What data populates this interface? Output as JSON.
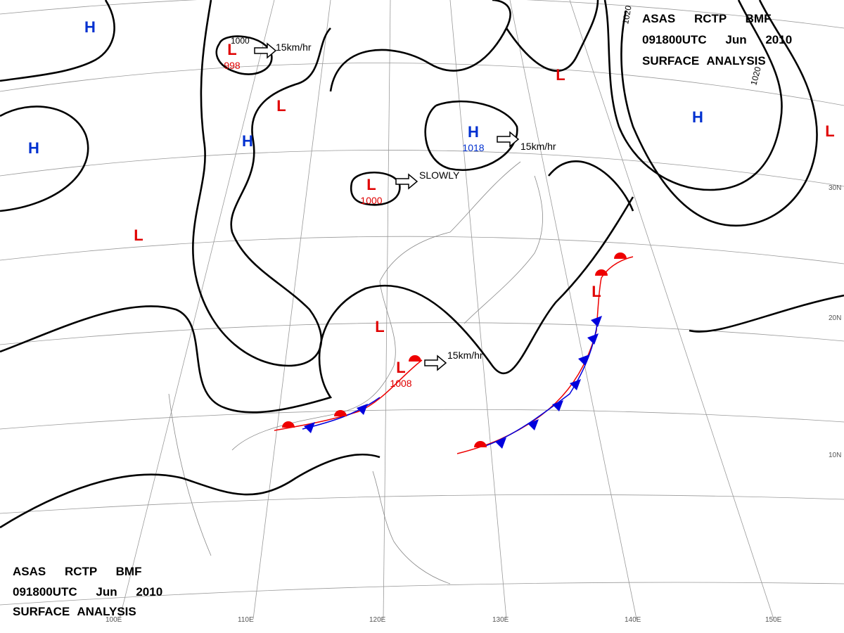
{
  "header_top": {
    "line1": "ASAS RCTP BMF",
    "line2": "091800UTC Jun 2010",
    "line3": "SURFACE ANALYSIS"
  },
  "header_bottom": {
    "line1": "ASAS RCTP BMF",
    "line2": "091800UTC Jun 2010",
    "line3": "SURFACE ANALYSIS"
  },
  "systems": [
    {
      "symbol": "L",
      "pressure": 998
    },
    {
      "symbol": "L"
    },
    {
      "symbol": "H"
    },
    {
      "symbol": "H"
    },
    {
      "symbol": "H"
    },
    {
      "symbol": "L"
    },
    {
      "symbol": "L",
      "pressure": 1000
    },
    {
      "symbol": "H",
      "pressure": 1018
    },
    {
      "symbol": "L"
    },
    {
      "symbol": "H"
    },
    {
      "symbol": "L"
    },
    {
      "symbol": "L",
      "pressure": 1008
    },
    {
      "symbol": "L"
    },
    {
      "symbol": "L"
    }
  ],
  "motions": [
    "15km/hr",
    "SLOWLY",
    "15km/hr",
    "15km/hr"
  ],
  "isobar_labels": [
    "1000",
    "1020",
    "1020"
  ],
  "latitude_labels": [
    "30N",
    "20N",
    "10N"
  ],
  "longitude_labels": [
    "100E",
    "110E",
    "120E",
    "130E",
    "140E",
    "150E"
  ]
}
